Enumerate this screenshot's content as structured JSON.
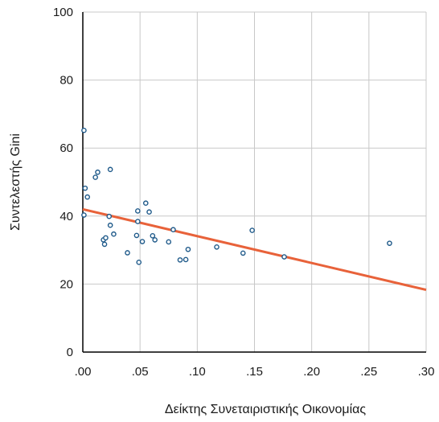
{
  "chart_data": {
    "type": "scatter",
    "xlabel": "Δείκτης Συνεταιριστικής Οικονομίας",
    "ylabel": "Συντελεστής Gini",
    "xlim": [
      0,
      0.3
    ],
    "ylim": [
      0,
      100
    ],
    "x_ticks": [
      ".00",
      ".05",
      ".10",
      ".15",
      ".20",
      ".25",
      ".30"
    ],
    "y_ticks": [
      "0",
      "20",
      "40",
      "60",
      "80",
      "100"
    ],
    "grid": true,
    "colors": {
      "points": "#1f5a8a",
      "trend": "#e8623a",
      "grid": "#c8c8c8",
      "axis": "#000000"
    },
    "points": [
      {
        "x": 0.001,
        "y": 65.2
      },
      {
        "x": 0.002,
        "y": 48.2
      },
      {
        "x": 0.001,
        "y": 40.3
      },
      {
        "x": 0.004,
        "y": 45.6
      },
      {
        "x": 0.011,
        "y": 51.4
      },
      {
        "x": 0.013,
        "y": 52.9
      },
      {
        "x": 0.018,
        "y": 33.0
      },
      {
        "x": 0.019,
        "y": 31.7
      },
      {
        "x": 0.02,
        "y": 33.6
      },
      {
        "x": 0.023,
        "y": 39.9
      },
      {
        "x": 0.024,
        "y": 53.7
      },
      {
        "x": 0.024,
        "y": 37.3
      },
      {
        "x": 0.027,
        "y": 34.7
      },
      {
        "x": 0.039,
        "y": 29.2
      },
      {
        "x": 0.047,
        "y": 34.3
      },
      {
        "x": 0.048,
        "y": 41.5
      },
      {
        "x": 0.048,
        "y": 38.4
      },
      {
        "x": 0.049,
        "y": 26.4
      },
      {
        "x": 0.052,
        "y": 32.5
      },
      {
        "x": 0.055,
        "y": 43.8
      },
      {
        "x": 0.058,
        "y": 41.2
      },
      {
        "x": 0.061,
        "y": 34.2
      },
      {
        "x": 0.063,
        "y": 33.0
      },
      {
        "x": 0.075,
        "y": 32.4
      },
      {
        "x": 0.079,
        "y": 36.0
      },
      {
        "x": 0.085,
        "y": 27.1
      },
      {
        "x": 0.09,
        "y": 27.2
      },
      {
        "x": 0.092,
        "y": 30.2
      },
      {
        "x": 0.117,
        "y": 30.9
      },
      {
        "x": 0.14,
        "y": 29.1
      },
      {
        "x": 0.148,
        "y": 35.8
      },
      {
        "x": 0.176,
        "y": 28.0
      },
      {
        "x": 0.268,
        "y": 32.0
      }
    ],
    "trend_line": {
      "x": [
        0.0,
        0.3
      ],
      "y": [
        42.0,
        18.3
      ]
    }
  }
}
